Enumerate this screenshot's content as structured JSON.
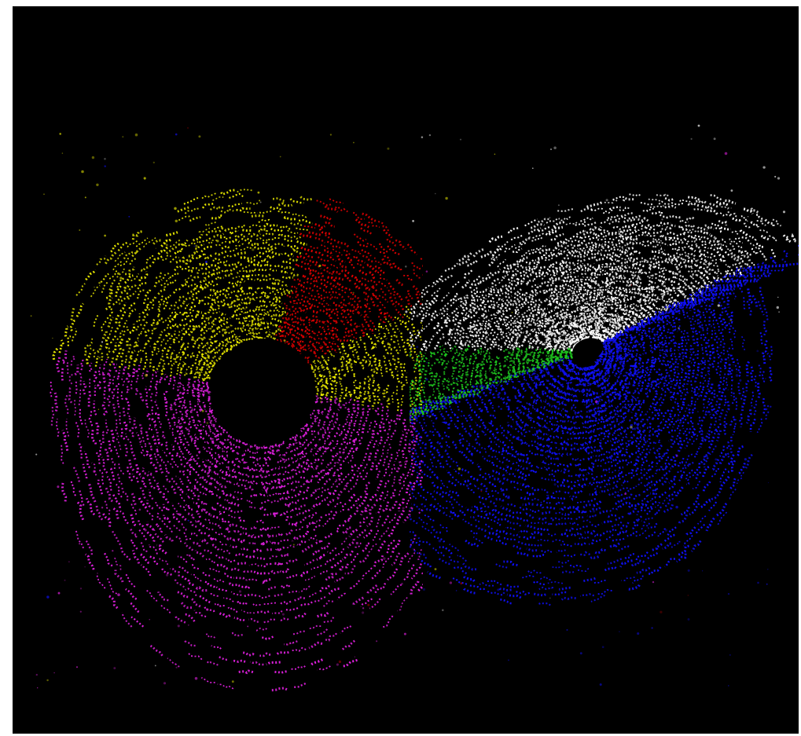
{
  "image": {
    "subject": "",
    "background_color": "#000000",
    "frame_color": "#ffffff",
    "palette": {
      "yellow": "#e6e600",
      "red": "#e00000",
      "green": "#1ec81e",
      "white": "#ffffff",
      "blue": "#1010ff",
      "magenta": "#e020e0"
    }
  }
}
